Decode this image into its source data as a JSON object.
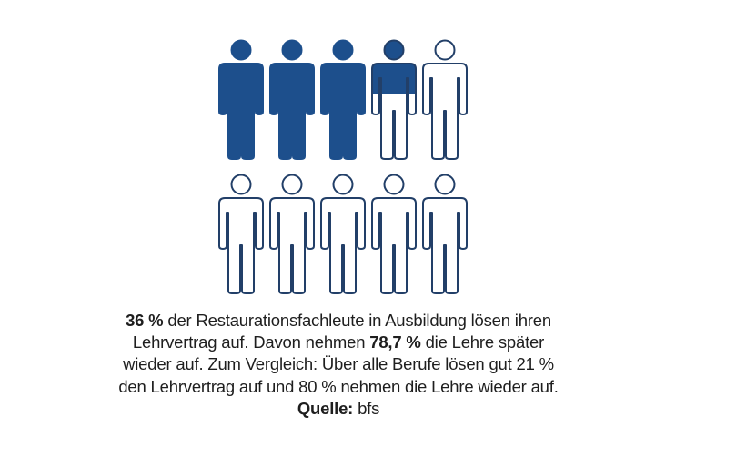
{
  "chart_data": {
    "type": "pictogram",
    "total_icons": 10,
    "filled_icons": 3.6,
    "value_percent": 36,
    "colors": {
      "fill": "#1d4f8c",
      "outline": "#223f68",
      "empty": "#ffffff"
    }
  },
  "caption": {
    "p1_bold": "36 %",
    "p1": " der Restaurationsfachleute in Ausbildung lösen ihren Lehrvertrag auf. Davon nehmen ",
    "p2_bold": "78,7 %",
    "p2": " die Lehre später wieder auf. Zum Vergleich: Über alle Berufe lösen gut 21 % den Lehrvertrag auf und 80 % nehmen die Lehre wieder auf. ",
    "source_label": "Quelle:",
    "source": " bfs"
  }
}
